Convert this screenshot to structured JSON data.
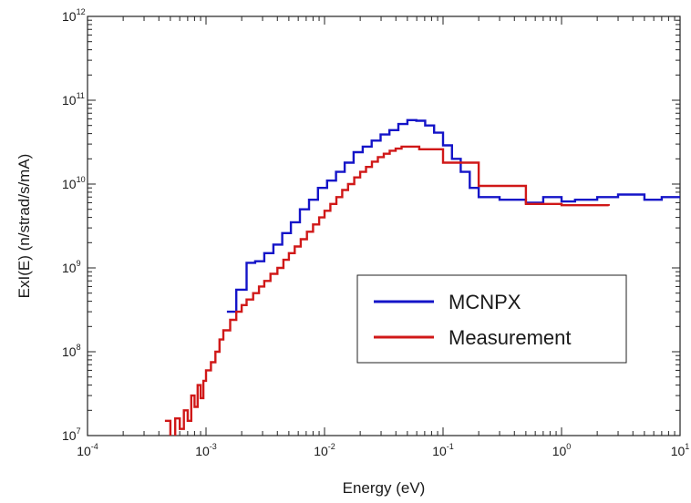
{
  "chart_data": {
    "type": "line",
    "step": true,
    "x_scale": "log",
    "y_scale": "log",
    "xlabel": "Energy (eV)",
    "ylabel": "ExI(E) (n/strad/s/mA)",
    "xlim": [
      0.0001,
      10
    ],
    "ylim": [
      10000000,
      1000000000000
    ],
    "x_ticks": [
      {
        "base": "10",
        "exp": "-4",
        "value": 0.0001
      },
      {
        "base": "10",
        "exp": "-3",
        "value": 0.001
      },
      {
        "base": "10",
        "exp": "-2",
        "value": 0.01
      },
      {
        "base": "10",
        "exp": "-1",
        "value": 0.1
      },
      {
        "base": "10",
        "exp": "0",
        "value": 1
      },
      {
        "base": "10",
        "exp": "1",
        "value": 10
      }
    ],
    "y_ticks": [
      {
        "base": "10",
        "exp": "7",
        "value": 10000000
      },
      {
        "base": "10",
        "exp": "8",
        "value": 100000000
      },
      {
        "base": "10",
        "exp": "9",
        "value": 1000000000
      },
      {
        "base": "10",
        "exp": "10",
        "value": 10000000000
      },
      {
        "base": "10",
        "exp": "11",
        "value": 100000000000
      },
      {
        "base": "10",
        "exp": "12",
        "value": 1000000000000
      }
    ],
    "grid": false,
    "legend_position": "lower-right",
    "series": [
      {
        "name": "MCNPX",
        "color": "#1414c8",
        "x": [
          0.0015,
          0.0018,
          0.0022,
          0.0026,
          0.0031,
          0.0037,
          0.0044,
          0.0052,
          0.0062,
          0.0074,
          0.0088,
          0.0105,
          0.0125,
          0.0148,
          0.0176,
          0.021,
          0.025,
          0.0297,
          0.0353,
          0.042,
          0.05,
          0.0595,
          0.0707,
          0.0841,
          0.1,
          0.119,
          0.141,
          0.168,
          0.2,
          0.3,
          0.5,
          0.7,
          1.0,
          1.3,
          2.0,
          3.0,
          5.0,
          7.0,
          10.0
        ],
        "y": [
          300000000,
          550000000,
          1150000000,
          1200000000,
          1500000000,
          1900000000,
          2600000000,
          3500000000,
          5000000000,
          6500000000,
          9000000000,
          11000000000,
          14000000000,
          18000000000,
          24000000000,
          28000000000,
          33000000000,
          39000000000,
          44000000000,
          52000000000,
          58000000000,
          57000000000,
          50000000000,
          41000000000,
          29000000000,
          20000000000,
          14000000000,
          9000000000,
          7000000000,
          6500000000,
          6000000000,
          7000000000,
          6200000000,
          6500000000,
          7000000000,
          7500000000,
          6500000000,
          7000000000,
          7000000000
        ]
      },
      {
        "name": "Measurement",
        "color": "#d01818",
        "x": [
          0.00045,
          0.0005,
          0.00055,
          0.0006,
          0.00065,
          0.0007,
          0.00075,
          0.0008,
          0.00085,
          0.0009,
          0.00095,
          0.001,
          0.0011,
          0.0012,
          0.0013,
          0.0014,
          0.0016,
          0.0018,
          0.002,
          0.0022,
          0.0025,
          0.0028,
          0.0031,
          0.0035,
          0.004,
          0.0045,
          0.005,
          0.0056,
          0.0063,
          0.0071,
          0.008,
          0.009,
          0.01,
          0.0112,
          0.0126,
          0.0141,
          0.0158,
          0.0178,
          0.02,
          0.0224,
          0.0251,
          0.0282,
          0.0316,
          0.0355,
          0.0398,
          0.0447,
          0.05,
          0.063,
          0.1,
          0.2,
          0.5,
          1.0,
          2.5
        ],
        "y": [
          15000000,
          9000000,
          16000000,
          12000000,
          20000000,
          15000000,
          30000000,
          22000000,
          40000000,
          28000000,
          45000000,
          60000000,
          75000000,
          100000000,
          140000000,
          180000000,
          240000000,
          300000000,
          360000000,
          420000000,
          500000000,
          600000000,
          700000000,
          850000000,
          1000000000,
          1250000000,
          1500000000,
          1800000000,
          2200000000,
          2700000000,
          3300000000,
          4000000000,
          4800000000,
          5800000000,
          7000000000,
          8500000000,
          10000000000,
          12000000000,
          14000000000,
          16000000000,
          18500000000,
          21000000000,
          23000000000,
          25000000000,
          26500000000,
          28000000000,
          28000000000,
          26000000000,
          18000000000,
          9500000000,
          5800000000,
          5600000000,
          5500000000
        ]
      }
    ]
  }
}
